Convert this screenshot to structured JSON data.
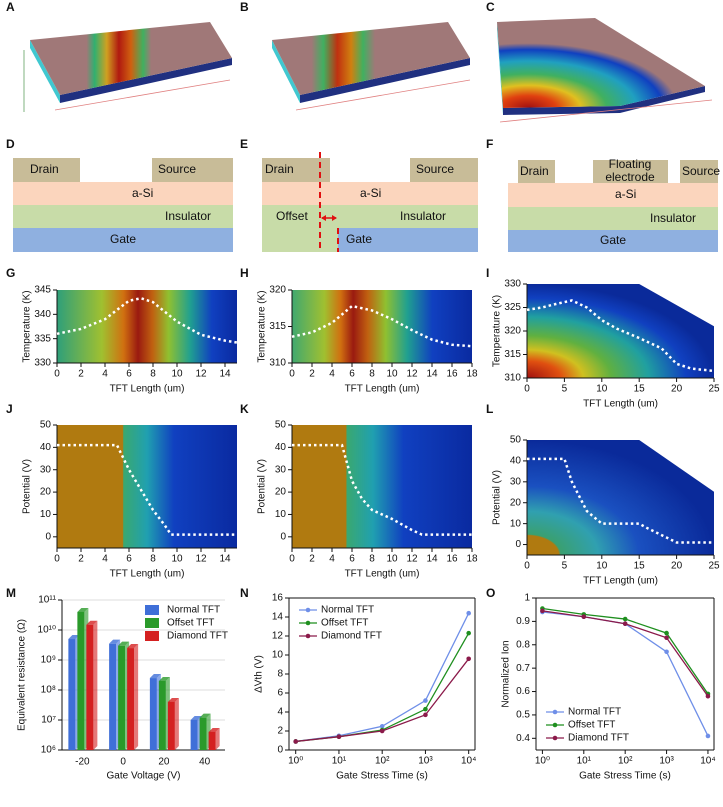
{
  "panel_labels": {
    "A": "A",
    "B": "B",
    "C": "C",
    "D": "D",
    "E": "E",
    "F": "F",
    "G": "G",
    "H": "H",
    "I": "I",
    "J": "J",
    "K": "K",
    "L": "L",
    "M": "M",
    "N": "N",
    "O": "O"
  },
  "schematics": {
    "D": {
      "drain": "Drain",
      "source": "Source",
      "asi": "a-Si",
      "insulator": "Insulator",
      "gate": "Gate"
    },
    "E": {
      "drain": "Drain",
      "source": "Source",
      "asi": "a-Si",
      "offset": "Offset",
      "insulator": "Insulator",
      "gate": "Gate"
    },
    "F": {
      "drain": "Drain",
      "floating_electrode": [
        "Floating",
        "electrode"
      ],
      "source": "Source",
      "asi": "a-Si",
      "insulator": "Insulator",
      "gate": "Gate"
    }
  },
  "chart_data": [
    {
      "type": "line",
      "line_style": "dotted",
      "xlabel": "TFT Length (um)",
      "ylabel": "Temperature (K)",
      "x": [
        0,
        2,
        4,
        6,
        7,
        8,
        10,
        12,
        14,
        15
      ],
      "series": [
        {
          "color": "#ffffff",
          "values": [
            336,
            337,
            339,
            342.8,
            343.3,
            342.5,
            338.5,
            335.8,
            334.6,
            334.2
          ]
        }
      ],
      "xlim": [
        0,
        15
      ],
      "ylim": [
        330,
        345
      ],
      "xticks": [
        0,
        2,
        4,
        6,
        8,
        10,
        12,
        14
      ],
      "yticks": [
        330,
        335,
        340,
        345
      ]
    },
    {
      "type": "line",
      "line_style": "dotted",
      "xlabel": "TFT Length (um)",
      "ylabel": "Temperature (K)",
      "x": [
        0,
        2,
        4,
        6,
        8,
        10,
        12,
        14,
        16,
        18
      ],
      "series": [
        {
          "color": "#ffffff",
          "values": [
            313.6,
            314.2,
            315.5,
            317.8,
            317.2,
            316,
            314.5,
            313.2,
            312.5,
            312.3
          ]
        }
      ],
      "xlim": [
        0,
        18
      ],
      "ylim": [
        310,
        320
      ],
      "xticks": [
        0,
        2,
        4,
        6,
        8,
        10,
        12,
        14,
        16,
        18
      ],
      "yticks": [
        310,
        315,
        320
      ]
    },
    {
      "type": "line",
      "line_style": "dotted",
      "xlabel": "TFT Length (um)",
      "ylabel": "Temperature (K)",
      "x": [
        0,
        2,
        4,
        6,
        8,
        10,
        12,
        15,
        18,
        20,
        22,
        25
      ],
      "series": [
        {
          "color": "#ffffff",
          "values": [
            324.5,
            325,
            325.8,
            326.5,
            325,
            322.3,
            320.5,
            318.5,
            316.3,
            313,
            312,
            311.5
          ]
        }
      ],
      "xlim": [
        0,
        25
      ],
      "ylim": [
        310,
        330
      ],
      "xticks": [
        0,
        5,
        10,
        15,
        20,
        25
      ],
      "yticks": [
        310,
        315,
        320,
        325,
        330
      ]
    },
    {
      "type": "line",
      "line_style": "dotted",
      "xlabel": "TFT Length (um)",
      "ylabel": "Potential (V)",
      "x": [
        0,
        5,
        6,
        7,
        8,
        9,
        9.5,
        15
      ],
      "series": [
        {
          "color": "#ffffff",
          "values": [
            41,
            41,
            30,
            21,
            12,
            5,
            1,
            1
          ]
        }
      ],
      "xlim": [
        0,
        15
      ],
      "ylim": [
        -5,
        50
      ],
      "xticks": [
        0,
        2,
        4,
        6,
        8,
        10,
        12,
        14
      ],
      "yticks": [
        0,
        10,
        20,
        30,
        40,
        50
      ]
    },
    {
      "type": "line",
      "line_style": "dotted",
      "xlabel": "TFT Length (um)",
      "ylabel": "Potential (V)",
      "x": [
        0,
        5,
        6,
        7,
        8,
        10,
        12,
        13,
        18
      ],
      "series": [
        {
          "color": "#ffffff",
          "values": [
            41,
            41,
            25,
            17,
            12,
            8,
            3,
            1,
            1
          ]
        }
      ],
      "xlim": [
        0,
        18
      ],
      "ylim": [
        -5,
        50
      ],
      "xticks": [
        0,
        2,
        4,
        6,
        8,
        10,
        12,
        14,
        16,
        18
      ],
      "yticks": [
        0,
        10,
        20,
        30,
        40,
        50
      ]
    },
    {
      "type": "line",
      "line_style": "dotted",
      "xlabel": "TFT Length (um)",
      "ylabel": "Potential (V)",
      "x": [
        0,
        5,
        6,
        8,
        10,
        15,
        16,
        20,
        25
      ],
      "series": [
        {
          "color": "#ffffff",
          "values": [
            41,
            41,
            30,
            16,
            10,
            10,
            8,
            1,
            1
          ]
        }
      ],
      "xlim": [
        0,
        25
      ],
      "ylim": [
        -5,
        50
      ],
      "xticks": [
        0,
        5,
        10,
        15,
        20,
        25
      ],
      "yticks": [
        0,
        10,
        20,
        30,
        40,
        50
      ]
    },
    {
      "type": "bar",
      "xlabel": "Gate Voltage (V)",
      "ylabel": "Equivalent resistance (Ω)",
      "categories": [
        "-20",
        "0",
        "20",
        "40"
      ],
      "series": [
        {
          "name": "Normal TFT",
          "color": "#3f6fd8",
          "values": [
            5000000000,
            3500000000,
            250000000,
            10000000
          ]
        },
        {
          "name": "Offset TFT",
          "color": "#2a9a2a",
          "values": [
            40000000000,
            3000000000,
            200000000,
            12000000
          ]
        },
        {
          "name": "Diamond TFT",
          "color": "#d42020",
          "values": [
            15000000000,
            2500000000,
            40000000,
            4000000
          ]
        }
      ],
      "yscale": "log",
      "ylim": [
        1000000,
        100000000000
      ],
      "yticks": [
        {
          "value": 1000000,
          "label": "10⁶"
        },
        {
          "value": 10000000,
          "label": "10⁷"
        },
        {
          "value": 100000000,
          "label": "10⁸"
        },
        {
          "value": 1000000000,
          "label": "10⁹"
        },
        {
          "value": 10000000000,
          "label": "10¹⁰"
        },
        {
          "value": 100000000000,
          "label": "10¹¹"
        }
      ],
      "grid": true,
      "legend": "upper right"
    },
    {
      "type": "line",
      "markers": true,
      "xlabel": "Gate Stress Time (s)",
      "ylabel": "ΔVth (V)",
      "xscale": "log",
      "x": [
        1,
        10,
        100,
        1000,
        10000
      ],
      "series": [
        {
          "name": "Normal TFT",
          "color": "#6f8fe8",
          "values": [
            0.9,
            1.5,
            2.5,
            5.2,
            14.4
          ]
        },
        {
          "name": "Offset TFT",
          "color": "#1f8f1f",
          "values": [
            0.9,
            1.4,
            2.1,
            4.3,
            12.3
          ]
        },
        {
          "name": "Diamond TFT",
          "color": "#8b1a4a",
          "values": [
            0.9,
            1.4,
            2.0,
            3.7,
            9.6
          ]
        }
      ],
      "xlim": [
        0.7,
        14000
      ],
      "ylim": [
        0,
        16
      ],
      "xticks": [
        {
          "value": 1,
          "label": "10⁰"
        },
        {
          "value": 10,
          "label": "10¹"
        },
        {
          "value": 100,
          "label": "10²"
        },
        {
          "value": 1000,
          "label": "10³"
        },
        {
          "value": 10000,
          "label": "10⁴"
        }
      ],
      "yticks": [
        0,
        2,
        4,
        6,
        8,
        10,
        12,
        14,
        16
      ],
      "legend": "upper left"
    },
    {
      "type": "line",
      "markers": true,
      "xlabel": "Gate Stress Time (s)",
      "ylabel": "Normalized Ion",
      "xscale": "log",
      "x": [
        1,
        10,
        100,
        1000,
        10000
      ],
      "series": [
        {
          "name": "Normal TFT",
          "color": "#6f8fe8",
          "values": [
            0.94,
            0.92,
            0.89,
            0.77,
            0.41
          ]
        },
        {
          "name": "Offset TFT",
          "color": "#1f8f1f",
          "values": [
            0.955,
            0.93,
            0.91,
            0.85,
            0.59
          ]
        },
        {
          "name": "Diamond TFT",
          "color": "#8b1a4a",
          "values": [
            0.945,
            0.92,
            0.89,
            0.83,
            0.58
          ]
        }
      ],
      "xlim": [
        0.7,
        14000
      ],
      "ylim": [
        0.35,
        1.0
      ],
      "xticks": [
        {
          "value": 1,
          "label": "10⁰"
        },
        {
          "value": 10,
          "label": "10¹"
        },
        {
          "value": 100,
          "label": "10²"
        },
        {
          "value": 1000,
          "label": "10³"
        },
        {
          "value": 10000,
          "label": "10⁴"
        }
      ],
      "yticks": [
        0.4,
        0.5,
        0.6,
        0.7,
        0.8,
        0.9,
        1.0
      ],
      "legend": "lower left"
    }
  ]
}
